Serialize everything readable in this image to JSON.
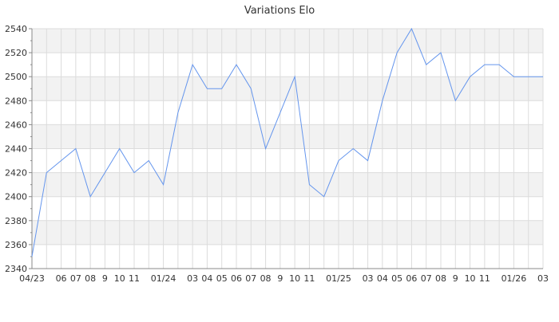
{
  "chart_data": {
    "type": "line",
    "title": "Variations Elo",
    "xlabel": "",
    "ylabel": "",
    "x_tick_labels": [
      "04/23",
      "",
      "06",
      "07",
      "08",
      "9",
      "10",
      "11",
      "",
      "01/24",
      "",
      "03",
      "04",
      "05",
      "06",
      "07",
      "08",
      "9",
      "10",
      "11",
      "",
      "01/25",
      "",
      "03",
      "04",
      "05",
      "06",
      "07",
      "08",
      "9",
      "10",
      "11",
      "",
      "01/26",
      "",
      "03"
    ],
    "y_ticks": [
      2340,
      2360,
      2380,
      2400,
      2420,
      2440,
      2460,
      2480,
      2500,
      2520,
      2540
    ],
    "ylim": [
      2340,
      2540
    ],
    "grid": true,
    "alternating_bands": true,
    "series": [
      {
        "color": "#6495ed",
        "values": [
          2350,
          2420,
          2430,
          2440,
          2400,
          2420,
          2440,
          2420,
          2430,
          2410,
          2470,
          2510,
          2490,
          2490,
          2510,
          2490,
          2440,
          2470,
          2500,
          2410,
          2400,
          2430,
          2440,
          2430,
          2480,
          2520,
          2540,
          2510,
          2520,
          2480,
          2500,
          2510,
          2510,
          2500,
          2500,
          2500
        ]
      }
    ]
  }
}
